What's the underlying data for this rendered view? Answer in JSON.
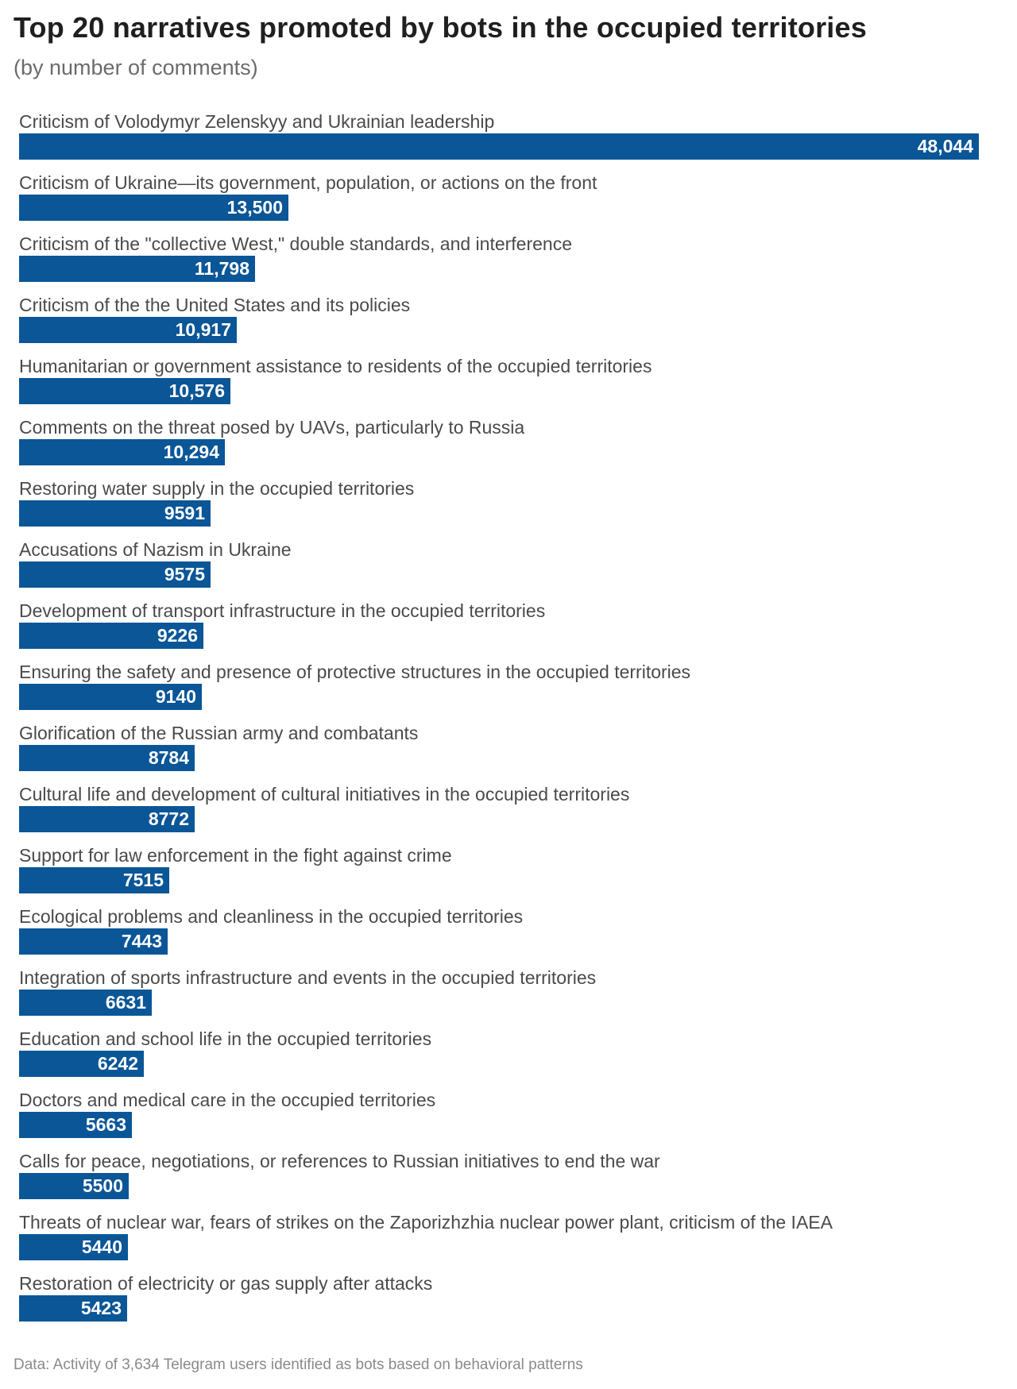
{
  "chart_data": {
    "type": "bar",
    "orientation": "horizontal",
    "title": "Top 20 narratives promoted by bots in the occupied territories",
    "subtitle": "(by number of comments)",
    "source": "Data: Activity of 3,634 Telegram users identified as bots based on behavioral patterns",
    "bar_color": "#0a5697",
    "grid": false,
    "legend": "none",
    "xlim": [
      0,
      48044
    ],
    "categories": [
      "Criticism of Volodymyr Zelenskyy and Ukrainian leadership",
      "Criticism of Ukraine—its government, population, or actions on the front",
      "Criticism of the \"collective West,\" double standards, and interference",
      "Criticism of the the United States and its policies",
      "Humanitarian or government assistance to residents of the occupied territories",
      "Comments on the threat posed by UAVs, particularly to Russia",
      "Restoring water supply in the occupied territories",
      "Accusations of Nazism in Ukraine",
      "Development of transport infrastructure in the occupied territories",
      "Ensuring the safety and presence of protective structures in the occupied territories",
      "Glorification of the Russian army and combatants",
      "Cultural life and development of cultural initiatives in the occupied territories",
      "Support for law enforcement in the fight against crime",
      "Ecological problems and cleanliness in the occupied territories",
      "Integration of sports infrastructure and events in the occupied territories",
      "Education and school life in the occupied territories",
      "Doctors and medical care in the occupied territories",
      "Calls for peace, negotiations, or references to Russian initiatives to end the war",
      "Threats of nuclear war, fears of strikes on the Zaporizhzhia nuclear power plant, criticism of the IAEA",
      "Restoration of electricity or gas supply after attacks"
    ],
    "values": [
      48044,
      13500,
      11798,
      10917,
      10576,
      10294,
      9591,
      9575,
      9226,
      9140,
      8784,
      8772,
      7515,
      7443,
      6631,
      6242,
      5663,
      5500,
      5440,
      5423
    ],
    "value_labels": [
      "48,044",
      "13,500",
      "11,798",
      "10,917",
      "10,576",
      "10,294",
      "9591",
      "9575",
      "9226",
      "9140",
      "8784",
      "8772",
      "7515",
      "7443",
      "6631",
      "6242",
      "5663",
      "5500",
      "5440",
      "5423"
    ]
  }
}
